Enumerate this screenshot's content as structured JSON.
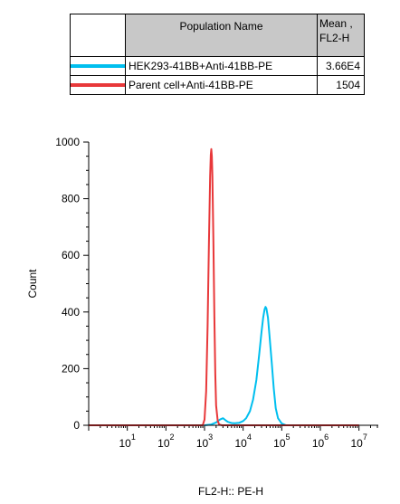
{
  "legend": {
    "header_name": "Population Name",
    "header_mean_line1": "Mean ,",
    "header_mean_line2": "FL2-H",
    "rows": [
      {
        "name": "HEK293-41BB+Anti-41BB-PE",
        "mean": "3.66E4",
        "color": "#00bfef"
      },
      {
        "name": "Parent cell+Anti-41BB-PE",
        "mean": "1504",
        "color": "#e8383a"
      }
    ]
  },
  "chart_data": {
    "type": "line",
    "xlabel": "FL2-H:: PE-H",
    "ylabel": "Count",
    "x_scale": "log",
    "xlim": [
      1,
      10000000
    ],
    "ylim": [
      0,
      1000
    ],
    "x_ticks": [
      {
        "base": "10",
        "exp": "1",
        "value": 10
      },
      {
        "base": "10",
        "exp": "2",
        "value": 100
      },
      {
        "base": "10",
        "exp": "3",
        "value": 1000
      },
      {
        "base": "10",
        "exp": "4",
        "value": 10000
      },
      {
        "base": "10",
        "exp": "5",
        "value": 100000
      },
      {
        "base": "10",
        "exp": "6",
        "value": 1000000
      },
      {
        "base": "10",
        "exp": "7",
        "value": 10000000
      }
    ],
    "y_ticks": [
      "0",
      "200",
      "400",
      "600",
      "800",
      "1000"
    ],
    "y_tick_values": [
      0,
      200,
      400,
      600,
      800,
      1000
    ],
    "grid": false,
    "series": [
      {
        "name": "HEK293-41BB+Anti-41BB-PE",
        "color": "#00bfef",
        "x": [
          1000,
          1500,
          2000,
          2500,
          3000,
          3500,
          4000,
          5000,
          6000,
          8000,
          10000,
          12000,
          15000,
          18000,
          22000,
          26000,
          30000,
          33000,
          36000,
          38000,
          40000,
          44000,
          48000,
          55000,
          62000,
          70000,
          80000,
          100000,
          130000,
          200000,
          10000000
        ],
        "y": [
          0,
          3,
          10,
          20,
          25,
          18,
          12,
          8,
          7,
          9,
          15,
          25,
          50,
          90,
          160,
          250,
          330,
          380,
          410,
          418,
          412,
          380,
          320,
          220,
          130,
          60,
          25,
          6,
          0,
          0,
          0
        ]
      },
      {
        "name": "Parent cell+Anti-41BB-PE",
        "color": "#e8383a",
        "x": [
          1,
          900,
          1000,
          1100,
          1200,
          1300,
          1400,
          1450,
          1500,
          1550,
          1600,
          1700,
          1800,
          1900,
          2000,
          2200,
          2400,
          2800,
          10000000
        ],
        "y": [
          0,
          0,
          20,
          120,
          350,
          650,
          880,
          955,
          975,
          950,
          880,
          650,
          380,
          180,
          70,
          15,
          3,
          0,
          0
        ]
      }
    ]
  }
}
